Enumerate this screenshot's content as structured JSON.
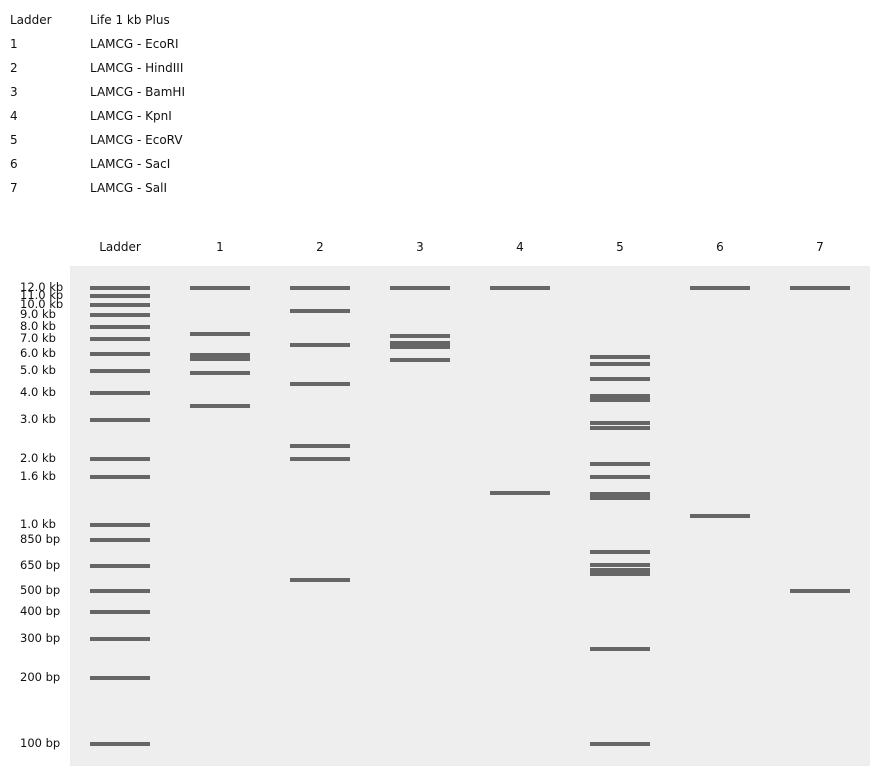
{
  "legend": [
    {
      "lane": "Ladder",
      "sample": "Life 1 kb Plus"
    },
    {
      "lane": "1",
      "sample": "LAMCG - EcoRI"
    },
    {
      "lane": "2",
      "sample": "LAMCG - HindIII"
    },
    {
      "lane": "3",
      "sample": "LAMCG - BamHI"
    },
    {
      "lane": "4",
      "sample": "LAMCG - KpnI"
    },
    {
      "lane": "5",
      "sample": "LAMCG - EcoRV"
    },
    {
      "lane": "6",
      "sample": "LAMCG - SacI"
    },
    {
      "lane": "7",
      "sample": "LAMCG - SalI"
    }
  ],
  "colors": {
    "gel": "#eeeeee",
    "band": "#666666"
  },
  "ladder_sizes_bp": [
    12000,
    11000,
    10000,
    9000,
    8000,
    7000,
    6000,
    5000,
    4000,
    3000,
    2000,
    1650,
    1000,
    850,
    650,
    500,
    400,
    300,
    200,
    100
  ],
  "size_labels": [
    "12.0 kb",
    "11.0 kb",
    "10.0 kb",
    "9.0 kb",
    "8.0 kb",
    "7.0 kb",
    "6.0 kb",
    "5.0 kb",
    "4.0 kb",
    "3.0 kb",
    "2.0 kb",
    "1.6 kb",
    "1.0 kb",
    "850 bp",
    "650 bp",
    "500 bp",
    "400 bp",
    "300 bp",
    "200 bp",
    "100 bp"
  ],
  "lanes": [
    {
      "label": "Ladder",
      "bands": [
        {
          "size_bp": 12000
        },
        {
          "size_bp": 11000
        },
        {
          "size_bp": 10000
        },
        {
          "size_bp": 9000
        },
        {
          "size_bp": 8000
        },
        {
          "size_bp": 7000
        },
        {
          "size_bp": 6000
        },
        {
          "size_bp": 5000
        },
        {
          "size_bp": 4000
        },
        {
          "size_bp": 3000
        },
        {
          "size_bp": 2000
        },
        {
          "size_bp": 1650
        },
        {
          "size_bp": 1000
        },
        {
          "size_bp": 850
        },
        {
          "size_bp": 650
        },
        {
          "size_bp": 500
        },
        {
          "size_bp": 400
        },
        {
          "size_bp": 300
        },
        {
          "size_bp": 200
        },
        {
          "size_bp": 100
        }
      ]
    },
    {
      "label": "1",
      "bands": [
        {
          "size_bp": 12000
        },
        {
          "size_bp": 7400
        },
        {
          "size_bp": 5800,
          "intensity": 2
        },
        {
          "size_bp": 4900
        },
        {
          "size_bp": 3500
        }
      ]
    },
    {
      "label": "2",
      "bands": [
        {
          "size_bp": 12000
        },
        {
          "size_bp": 9400
        },
        {
          "size_bp": 6600
        },
        {
          "size_bp": 4400
        },
        {
          "size_bp": 2300
        },
        {
          "size_bp": 2000
        },
        {
          "size_bp": 560
        }
      ]
    },
    {
      "label": "3",
      "bands": [
        {
          "size_bp": 12000
        },
        {
          "size_bp": 7200
        },
        {
          "size_bp": 6600,
          "intensity": 2
        },
        {
          "size_bp": 5600
        }
      ]
    },
    {
      "label": "4",
      "bands": [
        {
          "size_bp": 12000
        },
        {
          "size_bp": 1400
        }
      ]
    },
    {
      "label": "5",
      "bands": [
        {
          "size_bp": 5800
        },
        {
          "size_bp": 5400
        },
        {
          "size_bp": 4600
        },
        {
          "size_bp": 3800,
          "intensity": 2
        },
        {
          "size_bp": 2900
        },
        {
          "size_bp": 2750
        },
        {
          "size_bp": 1900
        },
        {
          "size_bp": 1650
        },
        {
          "size_bp": 1350,
          "intensity": 2
        },
        {
          "size_bp": 750
        },
        {
          "size_bp": 660
        },
        {
          "size_bp": 610,
          "intensity": 2
        },
        {
          "size_bp": 270
        },
        {
          "size_bp": 100
        }
      ]
    },
    {
      "label": "6",
      "bands": [
        {
          "size_bp": 12000
        },
        {
          "size_bp": 1100
        }
      ]
    },
    {
      "label": "7",
      "bands": [
        {
          "size_bp": 12000
        },
        {
          "size_bp": 500
        }
      ]
    }
  ]
}
